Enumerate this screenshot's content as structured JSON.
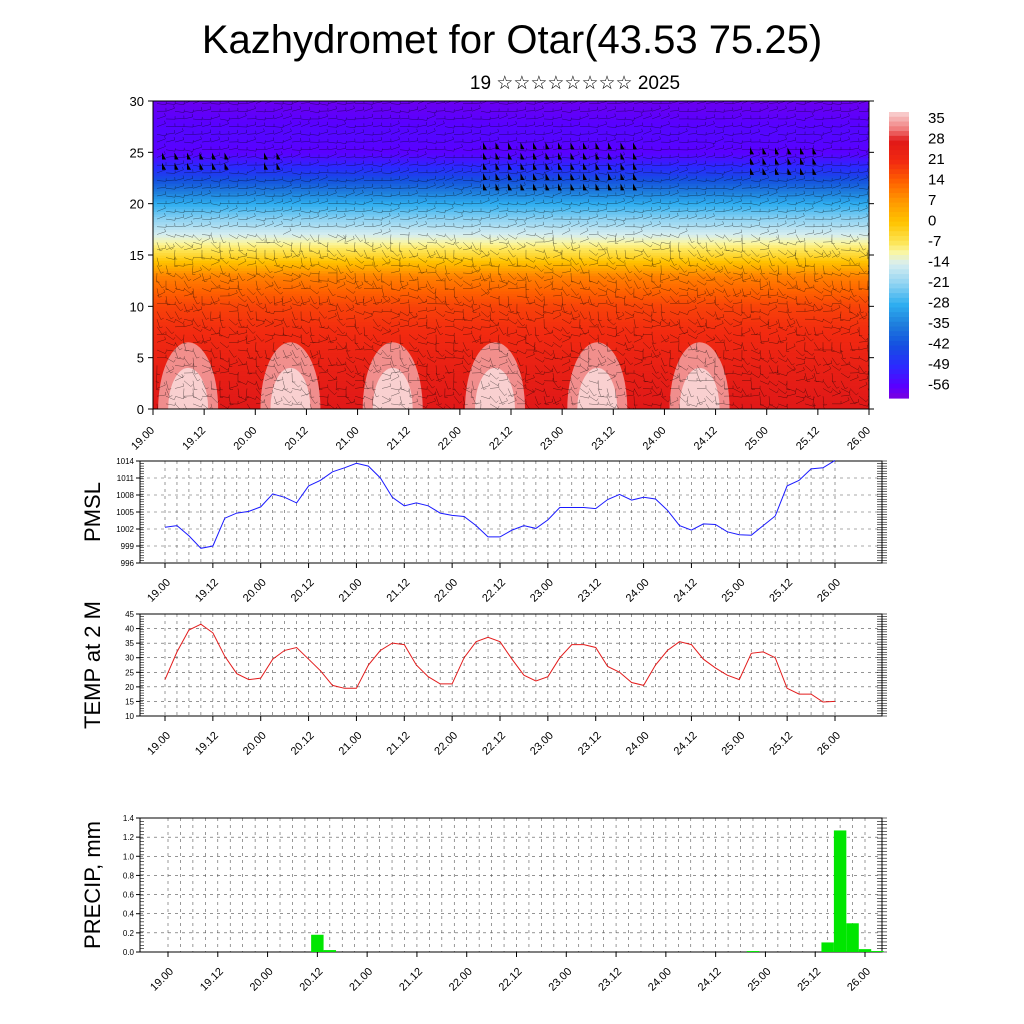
{
  "title": "Kazhydromet for Otar(43.53 75.25)",
  "subtitle": "19 ☆☆☆☆☆☆☆☆ 2025",
  "time_labels": [
    "19.00",
    "19.12",
    "20.00",
    "20.12",
    "21.00",
    "21.12",
    "22.00",
    "22.12",
    "23.00",
    "23.12",
    "24.00",
    "24.12",
    "25.00",
    "25.12",
    "26.00"
  ],
  "chart_data": [
    {
      "type": "heatmap",
      "title": "",
      "xlabel": "",
      "ylabel": "",
      "ylim": [
        0,
        30
      ],
      "yticks": [
        0,
        5,
        10,
        15,
        20,
        25,
        30
      ],
      "colorbar_labels": [
        "35",
        "28",
        "21",
        "14",
        "7",
        "0",
        "-7",
        "-14",
        "-21",
        "-28",
        "-35",
        "-42",
        "-49",
        "-56"
      ],
      "colorbar_range": [
        -60,
        38
      ],
      "level_temperature_profile": [
        {
          "level": 0,
          "value": 28
        },
        {
          "level": 5,
          "value": 24
        },
        {
          "level": 10,
          "value": 18
        },
        {
          "level": 13,
          "value": 10
        },
        {
          "level": 15,
          "value": -4
        },
        {
          "level": 17,
          "value": -14
        },
        {
          "level": 20,
          "value": -28
        },
        {
          "level": 23,
          "value": -46
        },
        {
          "level": 25,
          "value": -56
        },
        {
          "level": 27,
          "value": -55
        },
        {
          "level": 30,
          "value": -58
        }
      ],
      "surface_warm_maxima": [
        "19.12",
        "20.12",
        "21.12",
        "22.12",
        "23.12",
        "24.12"
      ],
      "overlay": "wind barbs"
    },
    {
      "type": "line",
      "ylabel": "PMSL",
      "ylim": [
        996,
        1014
      ],
      "yticks": [
        996,
        999,
        1002,
        1005,
        1008,
        1011,
        1014
      ],
      "series": [
        {
          "color": "#1a1aff",
          "values": [
            1002.3,
            1002.6,
            1000.8,
            998.6,
            999.0,
            1003.9,
            1004.8,
            1005.1,
            1005.9,
            1008.2,
            1007.6,
            1006.6,
            1009.6,
            1010.6,
            1012.1,
            1012.8,
            1013.6,
            1013.1,
            1011.0,
            1007.6,
            1006.1,
            1006.6,
            1006.1,
            1004.8,
            1004.4,
            1004.2,
            1002.6,
            1000.6,
            1000.6,
            1001.8,
            1002.6,
            1002.1,
            1003.6,
            1005.8,
            1005.8,
            1005.8,
            1005.6,
            1007.2,
            1008.1,
            1007.1,
            1007.6,
            1007.3,
            1005.3,
            1002.6,
            1001.8,
            1002.9,
            1002.8,
            1001.5,
            1001.0,
            1000.9,
            1002.6,
            1004.3,
            1009.6,
            1010.6,
            1012.6,
            1012.8,
            1014.1
          ]
        }
      ]
    },
    {
      "type": "line",
      "ylabel": "TEMP at 2 M",
      "ylim": [
        10,
        45
      ],
      "yticks": [
        10,
        15,
        20,
        25,
        30,
        35,
        40,
        45
      ],
      "series": [
        {
          "color": "#e21b1b",
          "values": [
            22.5,
            32,
            39.5,
            41.5,
            38.5,
            30.5,
            24.5,
            22.5,
            23,
            29.5,
            32.5,
            33.5,
            29.5,
            25.5,
            20.5,
            19.5,
            19.5,
            27.5,
            32.5,
            35,
            34.5,
            27.5,
            23.5,
            21,
            21,
            30,
            35.5,
            37,
            35.5,
            29.5,
            24,
            22,
            23.5,
            30,
            34.5,
            34.5,
            33.5,
            27,
            25,
            21.5,
            20.5,
            27.5,
            32.5,
            35.5,
            34.5,
            29.5,
            26.5,
            24,
            22.5,
            31.5,
            32,
            30,
            19.5,
            17.5,
            17.5,
            14.8,
            15
          ]
        }
      ]
    },
    {
      "type": "bar",
      "ylabel": "PRECIP, mm",
      "ylim": [
        0,
        1.4
      ],
      "yticks": [
        0.0,
        0.2,
        0.4,
        0.6,
        0.8,
        1.0,
        1.2,
        1.4
      ],
      "bar_color": "#00e600",
      "series": [
        {
          "values": [
            0,
            0,
            0,
            0,
            0,
            0,
            0,
            0,
            0,
            0,
            0,
            0,
            0.18,
            0.02,
            0,
            0,
            0,
            0,
            0,
            0,
            0,
            0,
            0,
            0,
            0,
            0,
            0,
            0,
            0,
            0,
            0,
            0,
            0,
            0,
            0,
            0,
            0,
            0,
            0,
            0,
            0,
            0,
            0,
            0,
            0,
            0,
            0,
            0.01,
            0,
            0,
            0,
            0,
            0,
            0.1,
            1.27,
            0.3,
            0.03,
            0.01
          ]
        }
      ]
    }
  ]
}
